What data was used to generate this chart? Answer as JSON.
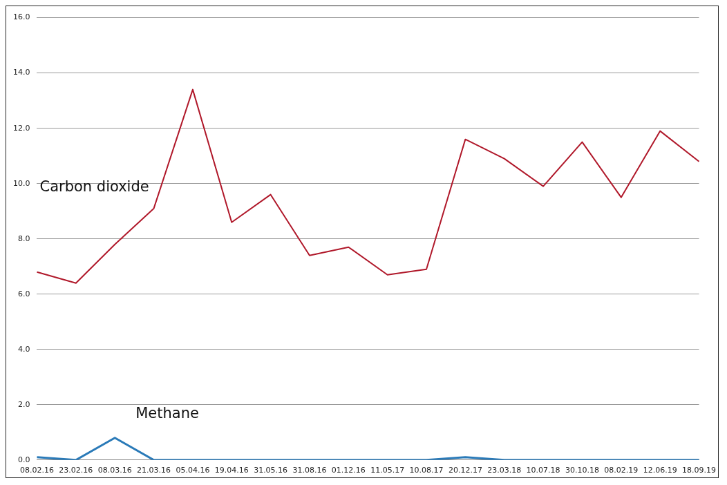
{
  "chart_data": {
    "type": "line",
    "categories": [
      "08.02.16",
      "23.02.16",
      "08.03.16",
      "21.03.16",
      "05.04.16",
      "19.04.16",
      "31.05.16",
      "31.08.16",
      "01.12.16",
      "11.05.17",
      "10.08.17",
      "20.12.17",
      "23.03.18",
      "10.07.18",
      "30.10.18",
      "08.02.19",
      "12.06.19",
      "18.09.19"
    ],
    "series": [
      {
        "name": "Carbon dioxide",
        "color": "#b0182a",
        "values": [
          6.8,
          6.4,
          7.8,
          9.1,
          13.4,
          8.6,
          9.6,
          7.4,
          7.7,
          6.7,
          6.9,
          11.6,
          10.9,
          9.9,
          11.5,
          9.5,
          11.9,
          10.8
        ]
      },
      {
        "name": "Methane",
        "color": "#2a7ab8",
        "values": [
          0.1,
          0.0,
          0.8,
          0.0,
          0.0,
          0.0,
          0.0,
          0.0,
          0.0,
          0.0,
          0.0,
          0.1,
          0.0,
          0.0,
          0.0,
          0.0,
          0.0,
          0.0
        ]
      }
    ],
    "ylim": [
      0,
      16
    ],
    "yticks": [
      {
        "value": 0,
        "label": "0.0"
      },
      {
        "value": 2,
        "label": "2.0"
      },
      {
        "value": 4,
        "label": "4.0"
      },
      {
        "value": 6,
        "label": "6.0"
      },
      {
        "value": 8,
        "label": "8.0"
      },
      {
        "value": 10,
        "label": "10.0"
      },
      {
        "value": 12,
        "label": "12.0"
      },
      {
        "value": 14,
        "label": "14.0"
      },
      {
        "value": 16,
        "label": "16.0"
      }
    ],
    "grid": "y",
    "marker": "none",
    "line_style": "solid",
    "legend": false
  }
}
